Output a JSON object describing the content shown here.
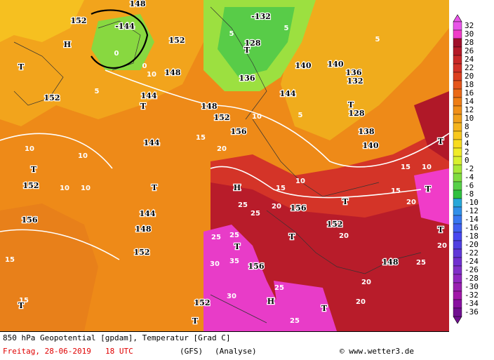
{
  "map": {
    "geopotential_labels": [
      "148",
      "-144",
      "152",
      "152",
      "148",
      "144",
      "T",
      "144",
      "T",
      "144",
      "148",
      "152",
      "T",
      "152",
      "156",
      "152",
      "T",
      "H",
      "T",
      "T",
      "152",
      "-132",
      "128",
      "T",
      "136",
      "140",
      "144",
      "140",
      "136",
      "132",
      "T",
      "128",
      "138",
      "140",
      "148",
      "152",
      "156",
      "156",
      "152",
      "148",
      "156",
      "H",
      "T",
      "T",
      "H",
      "T",
      "T",
      "T",
      "T",
      "T"
    ],
    "temperature_labels": [
      "10",
      "10",
      "10",
      "10",
      "15",
      "15",
      "20",
      "15",
      "25",
      "25",
      "20",
      "25",
      "25",
      "30",
      "35",
      "25",
      "30",
      "25",
      "20",
      "20",
      "20",
      "20",
      "20",
      "25",
      "15",
      "10",
      "15",
      "15",
      "10",
      "5",
      "5",
      "5",
      "0",
      "0",
      "5",
      "10",
      "10",
      "5"
    ]
  },
  "legend": {
    "ticks": [
      32,
      30,
      28,
      26,
      24,
      22,
      20,
      18,
      16,
      14,
      12,
      10,
      8,
      6,
      4,
      2,
      0,
      -2,
      -4,
      -6,
      -8,
      -10,
      -12,
      -14,
      -16,
      -18,
      -20,
      -22,
      -24,
      -26,
      -28,
      -30,
      -32,
      -34,
      -36
    ],
    "colors": [
      "#e855e8",
      "#f03cc8",
      "#a0102a",
      "#b41a28",
      "#c82828",
      "#d23228",
      "#dc4020",
      "#e4561c",
      "#ea6a18",
      "#ee7e16",
      "#f09018",
      "#f0a01a",
      "#f4b41c",
      "#f8c81e",
      "#f8dc20",
      "#f0ec28",
      "#d8f030",
      "#a8e838",
      "#80dc40",
      "#58d048",
      "#30c040",
      "#28a8d8",
      "#3090e8",
      "#3878f0",
      "#4060f0",
      "#4848f0",
      "#5040e0",
      "#6038d8",
      "#7030d0",
      "#8030c8",
      "#9028c0",
      "#9820b0",
      "#a018a8",
      "#8810a0",
      "#701090"
    ]
  },
  "footer": {
    "title": "850 hPa Geopotential [gpdam], Temperatur [Grad C]",
    "date": "Freitag, 28-06-2019",
    "time": "18 UTC",
    "model": "(GFS)",
    "run": "(Analyse)",
    "credit": "© www.wetter3.de"
  }
}
